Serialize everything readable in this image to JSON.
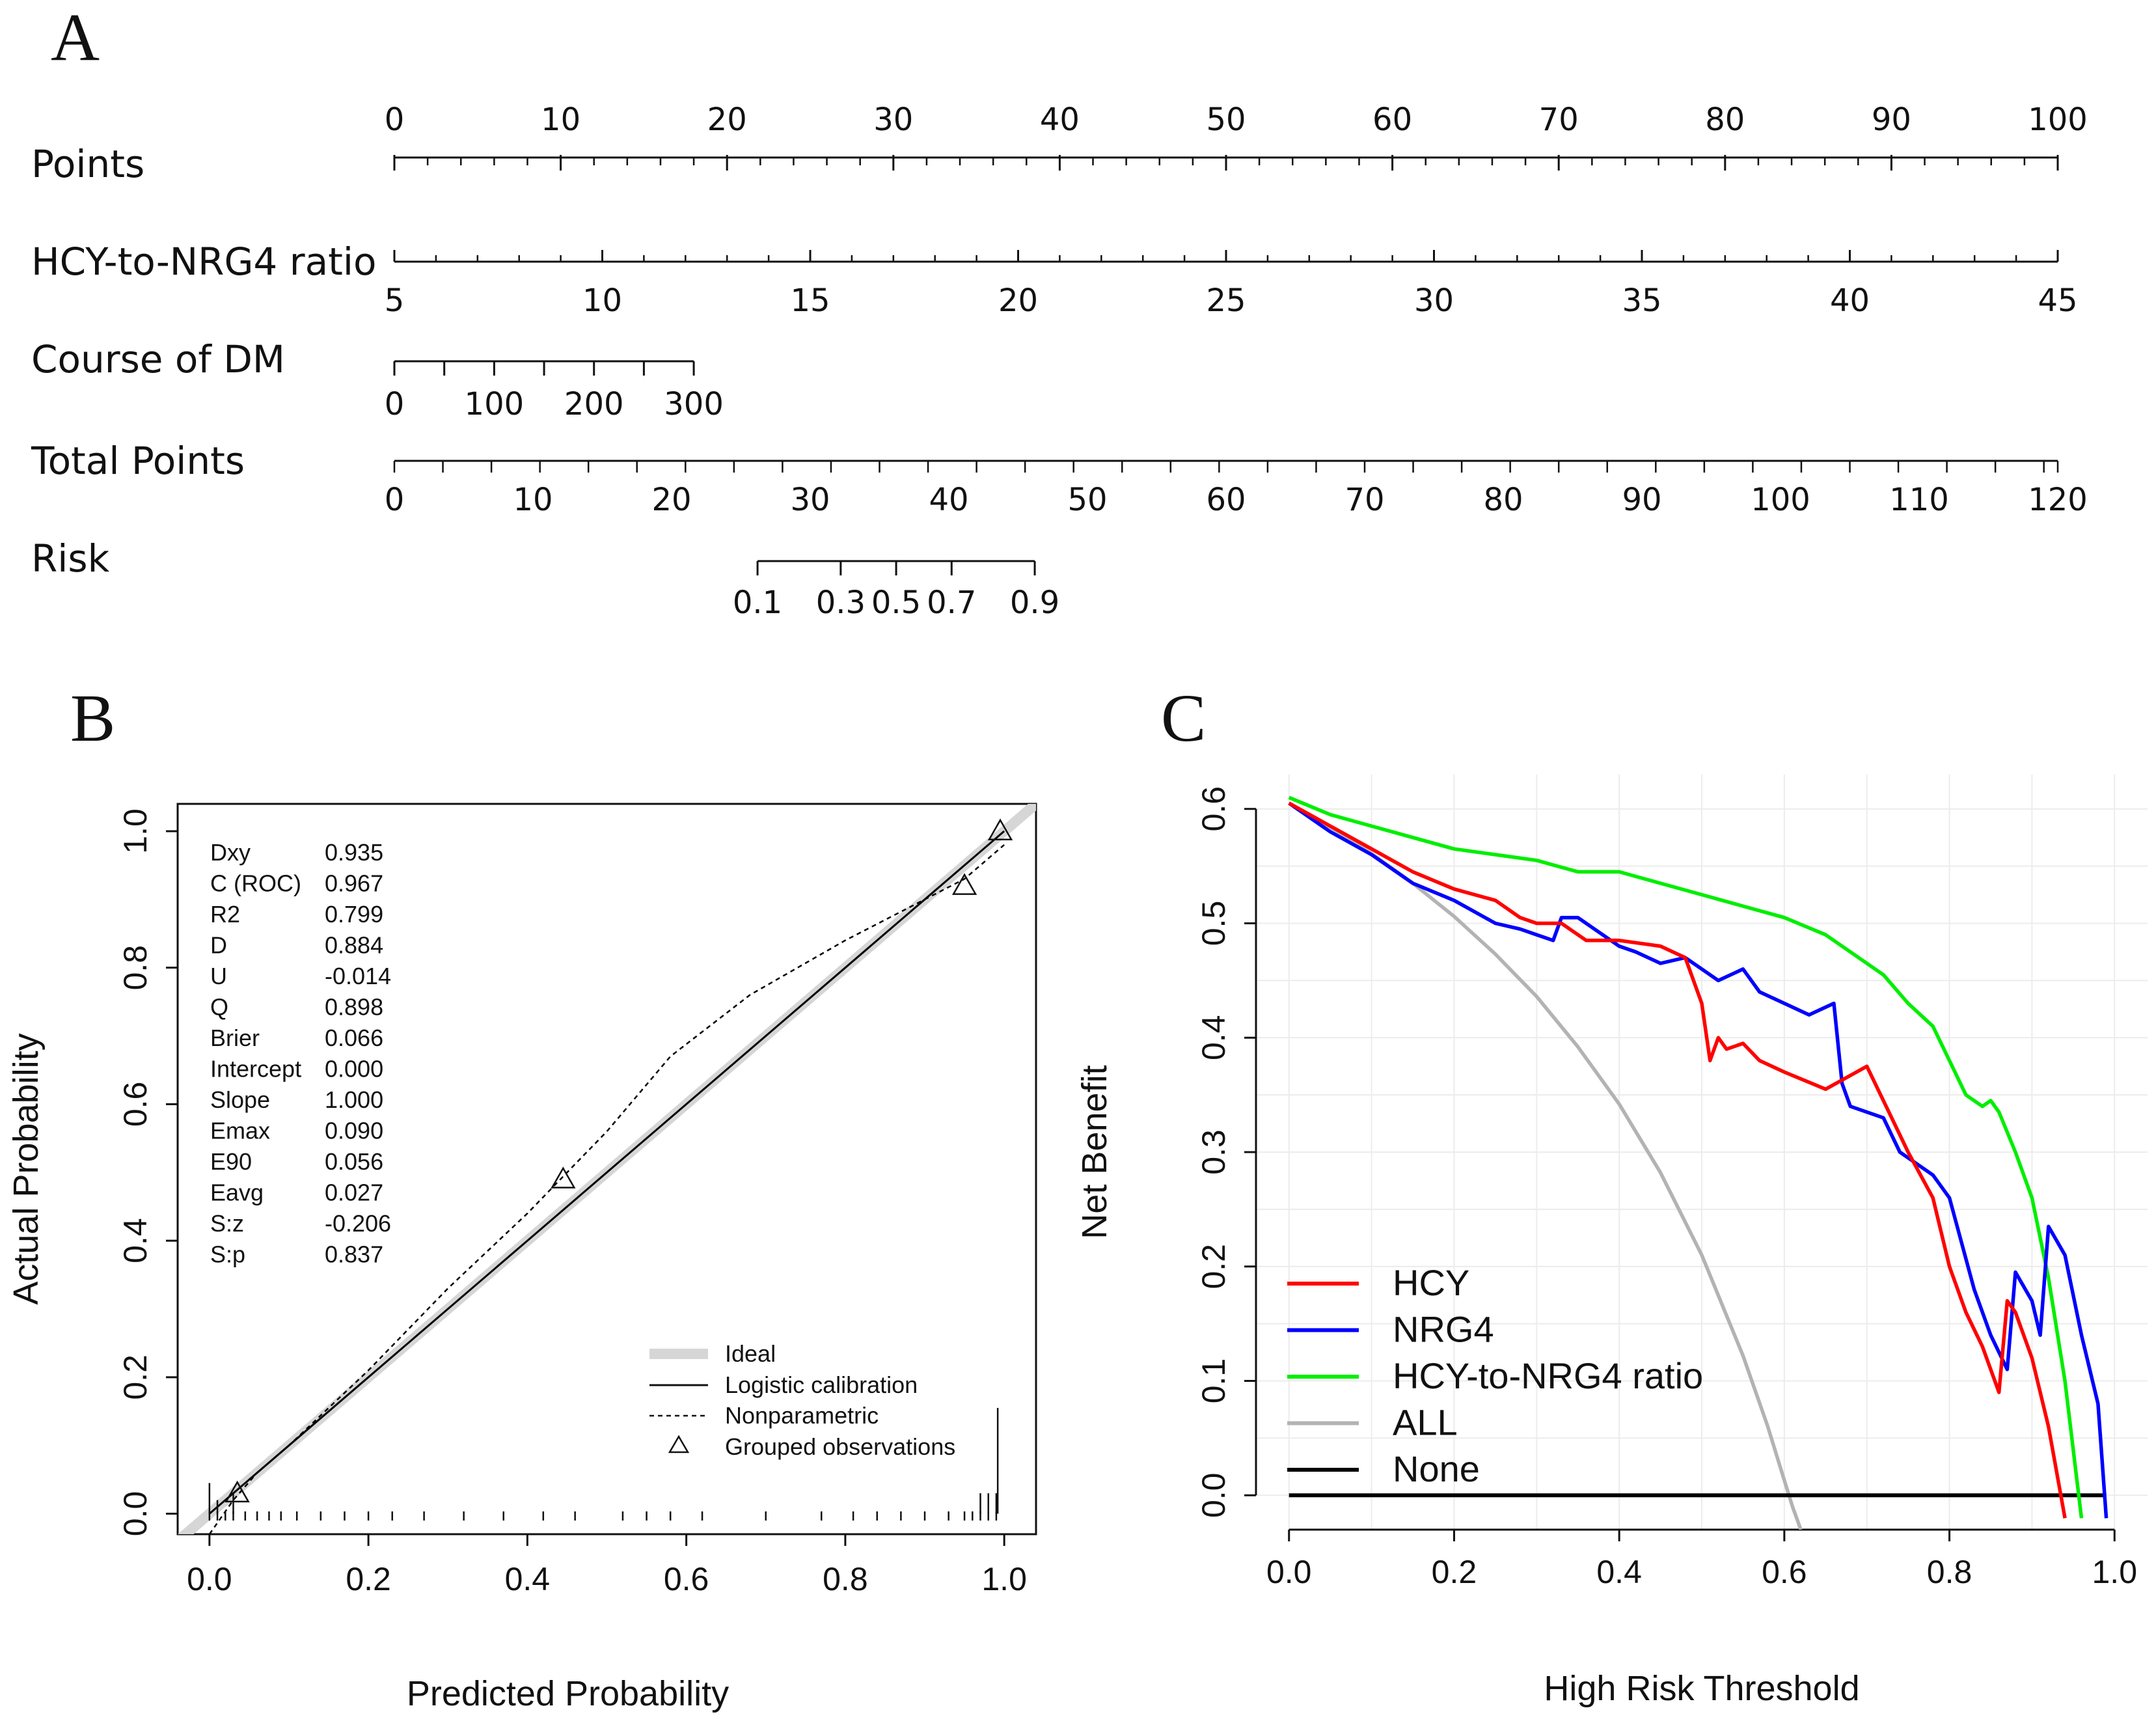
{
  "chart_data": [
    {
      "type": "nomogram",
      "panel_label": "A",
      "rows": [
        {
          "name": "Points",
          "ticks": [
            "0",
            "10",
            "20",
            "30",
            "40",
            "50",
            "60",
            "70",
            "80",
            "90",
            "100"
          ],
          "range": [
            0,
            100
          ],
          "minor_step": 2
        },
        {
          "name": "HCY-to-NRG4 ratio",
          "ticks": [
            "5",
            "10",
            "15",
            "20",
            "25",
            "30",
            "35",
            "40",
            "45"
          ],
          "range": [
            5,
            45
          ],
          "points_range": [
            0,
            100
          ]
        },
        {
          "name": "Course of DM",
          "ticks": [
            "0",
            "100",
            "200",
            "300"
          ],
          "range": [
            0,
            300
          ],
          "points_range": [
            0,
            18
          ],
          "minor_step": 50
        },
        {
          "name": "Total Points",
          "ticks": [
            "0",
            "10",
            "20",
            "30",
            "40",
            "50",
            "60",
            "70",
            "80",
            "90",
            "100",
            "110",
            "120"
          ],
          "range": [
            0,
            120
          ],
          "minor_step": 3.5
        },
        {
          "name": "Risk",
          "ticks": [
            "0.1",
            "0.3",
            "0.5",
            "0.7",
            "0.9"
          ],
          "total_points": [
            26.2,
            32.2,
            36.2,
            40.2,
            46.2
          ]
        }
      ]
    },
    {
      "type": "line",
      "panel_label": "B",
      "xlabel": "Predicted Probability",
      "ylabel": "Actual Probability",
      "xlim": [
        -0.04,
        1.04
      ],
      "ylim": [
        -0.03,
        1.04
      ],
      "xticks": [
        "0.0",
        "0.2",
        "0.4",
        "0.6",
        "0.8",
        "1.0"
      ],
      "yticks": [
        "0.0",
        "0.2",
        "0.4",
        "0.6",
        "0.8",
        "1.0"
      ],
      "stats": [
        {
          "name": "Dxy",
          "value": "0.935"
        },
        {
          "name": "C (ROC)",
          "value": "0.967"
        },
        {
          "name": "R2",
          "value": "0.799"
        },
        {
          "name": "D",
          "value": "0.884"
        },
        {
          "name": "U",
          "value": "-0.014"
        },
        {
          "name": "Q",
          "value": "0.898"
        },
        {
          "name": "Brier",
          "value": "0.066"
        },
        {
          "name": "Intercept",
          "value": "0.000"
        },
        {
          "name": "Slope",
          "value": "1.000"
        },
        {
          "name": "Emax",
          "value": "0.090"
        },
        {
          "name": "E90",
          "value": "0.056"
        },
        {
          "name": "Eavg",
          "value": "0.027"
        },
        {
          "name": "S:z",
          "value": "-0.206"
        },
        {
          "name": "S:p",
          "value": "0.837"
        }
      ],
      "legend": [
        "Ideal",
        "Logistic calibration",
        "Nonparametric",
        "Grouped observations"
      ],
      "series": [
        {
          "name": "Ideal",
          "x": [
            -0.04,
            1.04
          ],
          "y": [
            -0.04,
            1.04
          ],
          "color": "#d6d6d6"
        },
        {
          "name": "Logistic calibration",
          "x": [
            0,
            0.1,
            0.2,
            0.3,
            0.4,
            0.5,
            0.6,
            0.7,
            0.8,
            0.9,
            1.0
          ],
          "y": [
            0,
            0.1,
            0.2,
            0.3,
            0.4,
            0.5,
            0.6,
            0.7,
            0.8,
            0.9,
            1.0
          ],
          "color": "#000000"
        },
        {
          "name": "Nonparametric",
          "x": [
            0.0,
            0.03,
            0.06,
            0.1,
            0.15,
            0.2,
            0.3,
            0.4,
            0.45,
            0.5,
            0.58,
            0.68,
            0.8,
            0.9,
            0.95,
            1.0
          ],
          "y": [
            -0.03,
            0.02,
            0.06,
            0.1,
            0.155,
            0.21,
            0.33,
            0.44,
            0.5,
            0.56,
            0.67,
            0.76,
            0.84,
            0.9,
            0.93,
            0.98
          ],
          "color": "#000000"
        }
      ],
      "grouped_observations": {
        "x": [
          0.035,
          0.445,
          0.95,
          0.995
        ],
        "y": [
          0.03,
          0.49,
          0.92,
          1.0
        ]
      },
      "rug_x": [
        0.0,
        0.01,
        0.02,
        0.03,
        0.045,
        0.06,
        0.075,
        0.09,
        0.11,
        0.14,
        0.17,
        0.2,
        0.23,
        0.27,
        0.32,
        0.37,
        0.42,
        0.46,
        0.52,
        0.55,
        0.58,
        0.62,
        0.7,
        0.77,
        0.81,
        0.84,
        0.87,
        0.9,
        0.93,
        0.95,
        0.96,
        0.97,
        0.98,
        0.99
      ],
      "rug_top_x": [
        1.0
      ]
    },
    {
      "type": "line",
      "panel_label": "C",
      "xlabel": "High Risk Threshold",
      "ylabel": "Net Benefit",
      "xlim": [
        -0.04,
        1.04
      ],
      "ylim": [
        -0.03,
        0.63
      ],
      "xticks": [
        "0.0",
        "0.2",
        "0.4",
        "0.6",
        "0.8",
        "1.0"
      ],
      "yticks": [
        "0.0",
        "0.1",
        "0.2",
        "0.3",
        "0.4",
        "0.5",
        "0.6"
      ],
      "legend": [
        "HCY",
        "NRG4",
        "HCY-to-NRG4 ratio",
        "ALL",
        "None"
      ],
      "series": [
        {
          "name": "HCY",
          "color": "#ff0000",
          "x": [
            0,
            0.05,
            0.1,
            0.15,
            0.2,
            0.25,
            0.28,
            0.3,
            0.33,
            0.36,
            0.4,
            0.45,
            0.48,
            0.5,
            0.51,
            0.52,
            0.53,
            0.55,
            0.57,
            0.6,
            0.65,
            0.7,
            0.73,
            0.75,
            0.78,
            0.8,
            0.82,
            0.84,
            0.86,
            0.87,
            0.88,
            0.9,
            0.92,
            0.94
          ],
          "y": [
            0.605,
            0.585,
            0.565,
            0.545,
            0.53,
            0.52,
            0.505,
            0.5,
            0.5,
            0.485,
            0.485,
            0.48,
            0.47,
            0.43,
            0.38,
            0.4,
            0.39,
            0.395,
            0.38,
            0.37,
            0.355,
            0.375,
            0.33,
            0.3,
            0.26,
            0.2,
            0.16,
            0.13,
            0.09,
            0.17,
            0.16,
            0.12,
            0.06,
            -0.02
          ]
        },
        {
          "name": "NRG4",
          "color": "#0000ff",
          "x": [
            0,
            0.05,
            0.1,
            0.15,
            0.2,
            0.25,
            0.28,
            0.3,
            0.32,
            0.33,
            0.35,
            0.38,
            0.4,
            0.42,
            0.45,
            0.48,
            0.5,
            0.52,
            0.55,
            0.57,
            0.6,
            0.63,
            0.66,
            0.67,
            0.68,
            0.72,
            0.74,
            0.76,
            0.78,
            0.8,
            0.83,
            0.85,
            0.87,
            0.88,
            0.9,
            0.91,
            0.92,
            0.94,
            0.96,
            0.98,
            0.99
          ],
          "y": [
            0.605,
            0.58,
            0.56,
            0.535,
            0.52,
            0.5,
            0.495,
            0.49,
            0.485,
            0.505,
            0.505,
            0.49,
            0.48,
            0.475,
            0.465,
            0.47,
            0.46,
            0.45,
            0.46,
            0.44,
            0.43,
            0.42,
            0.43,
            0.36,
            0.34,
            0.33,
            0.3,
            0.29,
            0.28,
            0.26,
            0.18,
            0.14,
            0.11,
            0.195,
            0.17,
            0.14,
            0.235,
            0.21,
            0.14,
            0.08,
            -0.02
          ]
        },
        {
          "name": "HCY-to-NRG4 ratio",
          "color": "#00ee00",
          "x": [
            0,
            0.05,
            0.1,
            0.15,
            0.2,
            0.25,
            0.3,
            0.35,
            0.4,
            0.45,
            0.5,
            0.55,
            0.6,
            0.65,
            0.7,
            0.72,
            0.75,
            0.78,
            0.8,
            0.82,
            0.84,
            0.85,
            0.86,
            0.88,
            0.9,
            0.92,
            0.94,
            0.95,
            0.96
          ],
          "y": [
            0.61,
            0.595,
            0.585,
            0.575,
            0.565,
            0.56,
            0.555,
            0.545,
            0.545,
            0.535,
            0.525,
            0.515,
            0.505,
            0.49,
            0.465,
            0.455,
            0.43,
            0.41,
            0.38,
            0.35,
            0.34,
            0.345,
            0.335,
            0.3,
            0.26,
            0.19,
            0.1,
            0.04,
            -0.02
          ]
        },
        {
          "name": "ALL",
          "color": "#b3b3b3",
          "x": [
            0,
            0.05,
            0.1,
            0.15,
            0.2,
            0.25,
            0.3,
            0.35,
            0.4,
            0.45,
            0.5,
            0.55,
            0.58,
            0.6,
            0.61,
            0.62
          ],
          "y": [
            0.605,
            0.584,
            0.561,
            0.535,
            0.506,
            0.473,
            0.436,
            0.392,
            0.342,
            0.282,
            0.21,
            0.122,
            0.06,
            0.013,
            -0.01,
            -0.03
          ]
        },
        {
          "name": "None",
          "color": "#000000",
          "x": [
            0,
            0.99
          ],
          "y": [
            0,
            0
          ]
        }
      ]
    }
  ]
}
